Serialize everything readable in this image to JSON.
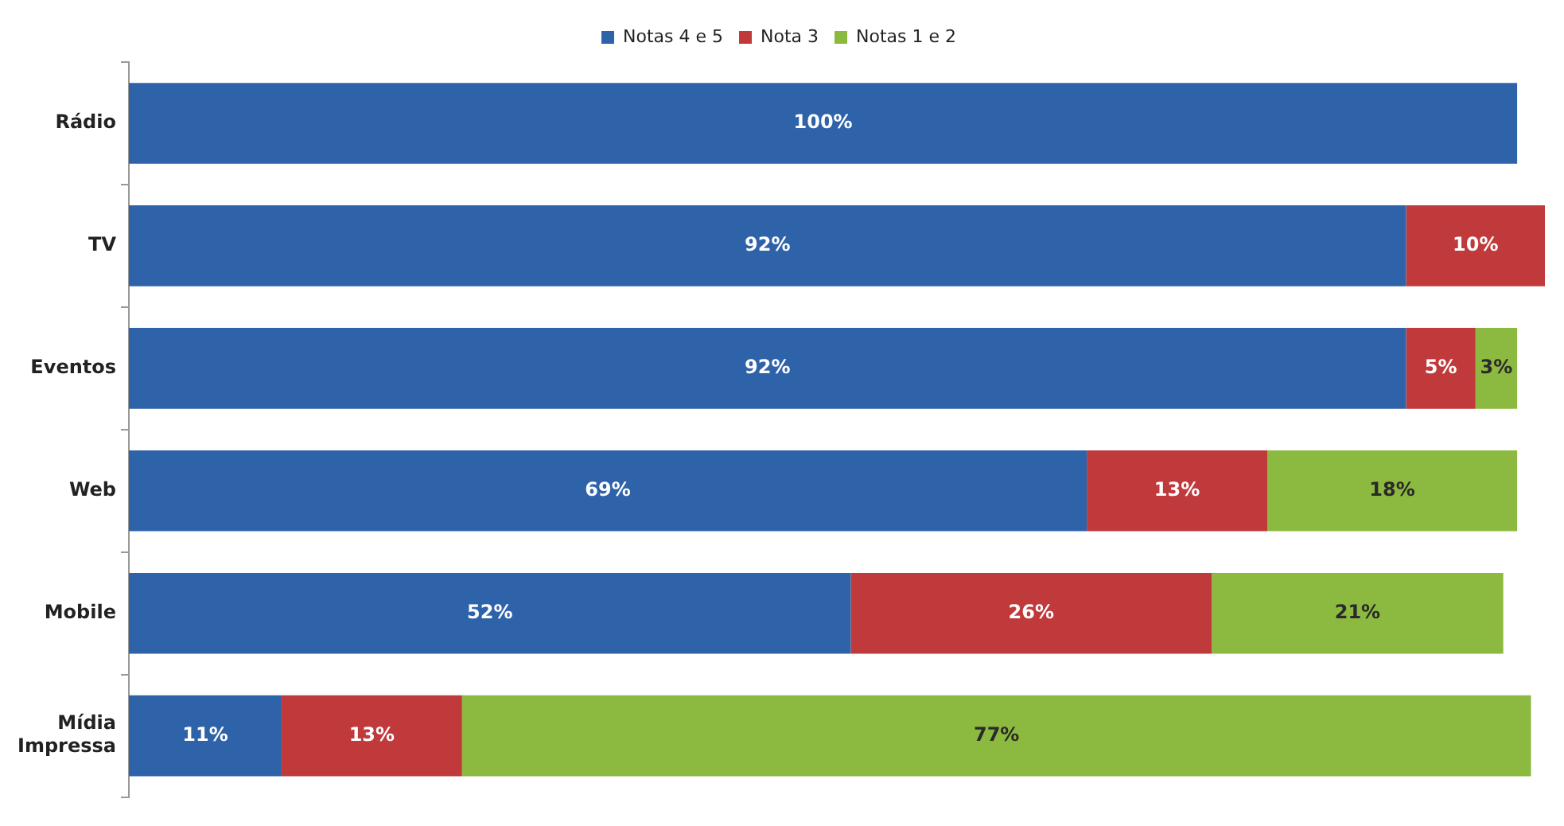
{
  "chart_data": {
    "type": "bar",
    "orientation": "horizontal",
    "stacked": true,
    "categories": [
      "Rádio",
      "TV",
      "Eventos",
      "Web",
      "Mobile",
      "Mídia Impressa"
    ],
    "series": [
      {
        "name": "Notas 4 e 5",
        "color": "#2f63a9",
        "values": [
          100,
          92,
          92,
          69,
          52,
          11
        ],
        "value_labels": [
          "100%",
          "92%",
          "92%",
          "69%",
          "52%",
          "11%"
        ]
      },
      {
        "name": "Nota 3",
        "color": "#c0393b",
        "values": [
          null,
          10,
          5,
          13,
          26,
          13
        ],
        "value_labels": [
          null,
          "10%",
          "5%",
          "13%",
          "26%",
          "13%"
        ]
      },
      {
        "name": "Notas 1 e 2",
        "color": "#8cb93f",
        "values": [
          null,
          null,
          3,
          18,
          21,
          77
        ],
        "value_labels": [
          null,
          null,
          "3%",
          "18%",
          "21%",
          "77%"
        ]
      }
    ],
    "legend": "top",
    "grid": false,
    "tick_labels": "y"
  }
}
